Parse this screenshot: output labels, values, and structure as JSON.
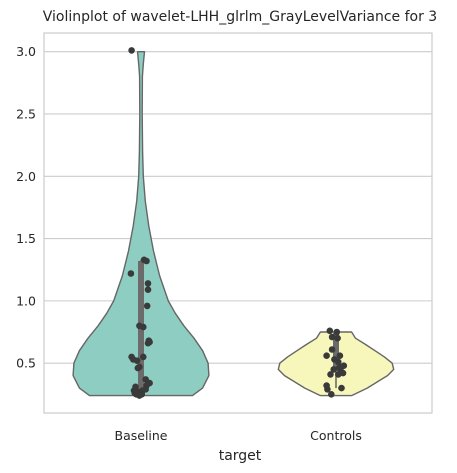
{
  "chart_data": {
    "type": "violin",
    "title": "Violinplot of wavelet-LHH_glrlm_GrayLevelVariance for 3",
    "xlabel": "target",
    "ylabel": "",
    "categories": [
      "Baseline",
      "Controls"
    ],
    "ylim": [
      0.1,
      3.15
    ],
    "yticks": [
      0.5,
      1.0,
      1.5,
      2.0,
      2.5,
      3.0
    ],
    "ytick_labels": [
      "0.5",
      "1.0",
      "1.5",
      "2.0",
      "2.5",
      "3.0"
    ],
    "grid": "horizontal",
    "colors": {
      "Baseline": "#8ecdc2",
      "Controls": "#f8f7bb",
      "points": "#3a3a3a",
      "outline": "#666666",
      "box": "#6b6b6b"
    },
    "series": [
      {
        "category": "Baseline",
        "box": {
          "q1": 0.26,
          "median": 0.38,
          "q3": 1.32,
          "min": 0.24,
          "max": 1.33
        },
        "profile": [
          [
            0.24,
            0.66
          ],
          [
            0.3,
            0.79
          ],
          [
            0.4,
            0.87
          ],
          [
            0.5,
            0.86
          ],
          [
            0.6,
            0.79
          ],
          [
            0.7,
            0.68
          ],
          [
            0.8,
            0.55
          ],
          [
            0.9,
            0.44
          ],
          [
            1.0,
            0.35
          ],
          [
            1.2,
            0.24
          ],
          [
            1.4,
            0.16
          ],
          [
            1.6,
            0.1
          ],
          [
            1.8,
            0.055
          ],
          [
            2.0,
            0.03
          ],
          [
            2.2,
            0.02
          ],
          [
            2.5,
            0.015
          ],
          [
            2.8,
            0.018
          ],
          [
            2.9,
            0.03
          ],
          [
            3.0,
            0.045
          ]
        ],
        "points": [
          [
            -0.12,
            3.01
          ],
          [
            -0.13,
            1.22
          ],
          [
            0.04,
            1.33
          ],
          [
            0.07,
            1.32
          ],
          [
            0.09,
            1.14
          ],
          [
            0.09,
            1.09
          ],
          [
            0.08,
            0.96
          ],
          [
            -0.02,
            0.8
          ],
          [
            0.03,
            0.79
          ],
          [
            0.1,
            0.68
          ],
          [
            0.09,
            0.66
          ],
          [
            0.11,
            0.67
          ],
          [
            -0.12,
            0.55
          ],
          [
            -0.1,
            0.53
          ],
          [
            0.03,
            0.55
          ],
          [
            -0.05,
            0.52
          ],
          [
            -0.02,
            0.47
          ],
          [
            -0.04,
            0.46
          ],
          [
            0.06,
            0.37
          ],
          [
            0.09,
            0.34
          ],
          [
            0.11,
            0.34
          ],
          [
            0.07,
            0.32
          ],
          [
            -0.07,
            0.31
          ],
          [
            -0.09,
            0.28
          ],
          [
            -0.04,
            0.27
          ],
          [
            0.02,
            0.28
          ],
          [
            0.06,
            0.29
          ],
          [
            -0.06,
            0.25
          ],
          [
            -0.02,
            0.24
          ],
          [
            0.01,
            0.25
          ],
          [
            -0.08,
            0.26
          ]
        ]
      },
      {
        "category": "Controls",
        "box": {
          "q1": 0.44,
          "median": 0.46,
          "q3": 0.74,
          "min": 0.3,
          "max": 0.76
        },
        "profile": [
          [
            0.24,
            0.2
          ],
          [
            0.3,
            0.4
          ],
          [
            0.4,
            0.66
          ],
          [
            0.45,
            0.74
          ],
          [
            0.5,
            0.72
          ],
          [
            0.55,
            0.62
          ],
          [
            0.6,
            0.5
          ],
          [
            0.65,
            0.38
          ],
          [
            0.7,
            0.25
          ],
          [
            0.75,
            0.2
          ]
        ],
        "points": [
          [
            -0.08,
            0.76
          ],
          [
            -0.05,
            0.71
          ],
          [
            0.01,
            0.75
          ],
          [
            0.02,
            0.7
          ],
          [
            -0.12,
            0.56
          ],
          [
            -0.05,
            0.61
          ],
          [
            0.05,
            0.56
          ],
          [
            -0.02,
            0.53
          ],
          [
            0.03,
            0.51
          ],
          [
            0.07,
            0.47
          ],
          [
            0.1,
            0.48
          ],
          [
            0.04,
            0.46
          ],
          [
            -0.03,
            0.45
          ],
          [
            0.06,
            0.43
          ],
          [
            -0.07,
            0.41
          ],
          [
            0.03,
            0.41
          ],
          [
            0.09,
            0.42
          ],
          [
            -0.12,
            0.32
          ],
          [
            -0.11,
            0.29
          ],
          [
            0.07,
            0.3
          ],
          [
            -0.06,
            0.25
          ]
        ]
      }
    ]
  }
}
